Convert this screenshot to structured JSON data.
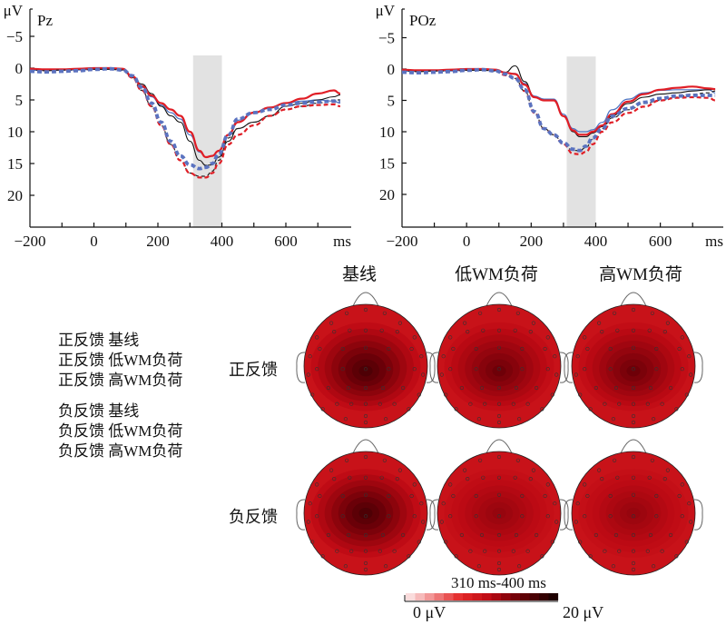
{
  "chart_data": [
    {
      "type": "line",
      "title": "Pz",
      "ylabel": "μV",
      "xlabel": "ms",
      "xlim": [
        -200,
        770
      ],
      "ylim": [
        -7,
        25
      ],
      "y_inverted": true,
      "yticks": [
        "−5",
        "0",
        "5",
        "10",
        "15",
        "20"
      ],
      "ytick_values": [
        -5,
        0,
        5,
        10,
        15,
        20
      ],
      "xticks": [
        "−200",
        "0",
        "200",
        "400",
        "600"
      ],
      "xtick_values": [
        -200,
        0,
        200,
        400,
        600
      ],
      "shaded_window": [
        310,
        400
      ],
      "x": [
        -200,
        -150,
        -100,
        -50,
        0,
        50,
        90,
        120,
        150,
        180,
        210,
        240,
        270,
        300,
        330,
        350,
        370,
        390,
        420,
        450,
        500,
        550,
        600,
        650,
        700,
        750,
        770
      ],
      "series": [
        {
          "name": "正反馈 基线",
          "values": [
            0.3,
            0.4,
            0.3,
            0.3,
            0.2,
            0.2,
            0.3,
            1.5,
            3.5,
            6,
            9,
            12,
            14.5,
            16.5,
            17,
            17,
            16.2,
            14.5,
            11,
            9.5,
            8.5,
            7.5,
            6.5,
            6,
            5.5,
            5,
            5
          ]
        },
        {
          "name": "正反馈 低WM负荷",
          "values": [
            0.3,
            0.5,
            0.3,
            0.4,
            0.2,
            0.1,
            0.2,
            1.5,
            3.5,
            6,
            9,
            12,
            14.5,
            16.5,
            17.2,
            17.2,
            16.5,
            15,
            12,
            10.5,
            9,
            7.5,
            6.5,
            6,
            5.8,
            5.7,
            6
          ]
        },
        {
          "name": "正反馈 高WM负荷",
          "values": [
            0.5,
            0.6,
            0.5,
            0.4,
            0.2,
            0.1,
            0.3,
            1.2,
            3,
            5.5,
            8.5,
            11.5,
            13.8,
            15.2,
            15.8,
            15.6,
            15,
            13.5,
            10.5,
            8,
            7,
            6.5,
            5.8,
            5.5,
            5.3,
            5.2,
            5.3
          ]
        },
        {
          "name": "负反馈 基线",
          "values": [
            0.2,
            0.3,
            0.2,
            0.2,
            0.1,
            0.1,
            0.2,
            1.5,
            2.5,
            4,
            6,
            7.5,
            8.5,
            11.5,
            14.5,
            15.3,
            15.2,
            14,
            11.5,
            9.5,
            8.5,
            7.5,
            6,
            5.5,
            5,
            4.5,
            4.2
          ]
        },
        {
          "name": "负反馈 低WM负荷",
          "values": [
            0.1,
            0.2,
            0.2,
            0.1,
            0,
            0,
            0.1,
            1.3,
            2.8,
            4.3,
            5.5,
            6.5,
            7.5,
            10,
            13,
            14,
            13.8,
            13,
            10.5,
            8.5,
            7,
            6.2,
            5.5,
            4.8,
            4,
            3.5,
            4
          ]
        },
        {
          "name": "负反馈 高WM负荷",
          "values": [
            0.3,
            0.4,
            0.3,
            0.3,
            0.2,
            0.1,
            0.3,
            1.4,
            3,
            4.5,
            5.8,
            7,
            8,
            10.5,
            13.2,
            14,
            13.8,
            13,
            10.5,
            8.2,
            7,
            6.3,
            5.5,
            5.2,
            5,
            5.2,
            5.5
          ]
        }
      ]
    },
    {
      "type": "line",
      "title": "POz",
      "ylabel": "μV",
      "xlabel": "ms",
      "xlim": [
        -200,
        770
      ],
      "ylim": [
        -7,
        25
      ],
      "y_inverted": true,
      "yticks": [
        "−5",
        "0",
        "5",
        "10",
        "15",
        "20"
      ],
      "ytick_values": [
        -5,
        0,
        5,
        10,
        15,
        20
      ],
      "xticks": [
        "−200",
        "0",
        "200",
        "400",
        "600"
      ],
      "xtick_values": [
        -200,
        0,
        200,
        400,
        600
      ],
      "shaded_window": [
        310,
        400
      ],
      "x": [
        -200,
        -150,
        -100,
        -50,
        0,
        50,
        90,
        120,
        150,
        180,
        210,
        240,
        270,
        300,
        330,
        350,
        370,
        390,
        420,
        450,
        500,
        550,
        600,
        650,
        700,
        750,
        770
      ],
      "series": [
        {
          "name": "正反馈 基线",
          "values": [
            0.3,
            0.4,
            0.3,
            0.3,
            0.2,
            0.2,
            0.3,
            0.8,
            1.5,
            3.5,
            7,
            9.5,
            10.5,
            12,
            13,
            13,
            12.5,
            11.2,
            9.5,
            7.8,
            6.5,
            5.5,
            5,
            4.5,
            4,
            3.8,
            3.5
          ]
        },
        {
          "name": "正反馈 低WM负荷",
          "values": [
            0.3,
            0.5,
            0.3,
            0.4,
            0.2,
            0.1,
            0.2,
            1,
            1.5,
            3.5,
            7,
            9.5,
            10.5,
            12,
            13.5,
            13.6,
            13.2,
            12,
            10,
            8.5,
            7,
            6,
            5,
            4.6,
            4.5,
            4.6,
            5
          ]
        },
        {
          "name": "正反馈 高WM负荷",
          "values": [
            0.5,
            0.6,
            0.5,
            0.4,
            0.2,
            0.1,
            0.3,
            0.8,
            1.5,
            3.3,
            6.8,
            9.5,
            10.5,
            11.8,
            12.8,
            13,
            12.3,
            11,
            9.5,
            7.5,
            6.3,
            5.3,
            4.7,
            4.3,
            4.2,
            4.2,
            4.2
          ]
        },
        {
          "name": "负反馈 基线",
          "values": [
            0.2,
            0.3,
            0.2,
            0.2,
            0.1,
            0.1,
            0.2,
            0.5,
            -0.5,
            2,
            4.5,
            5,
            5,
            7.5,
            10,
            10.8,
            10.8,
            10.2,
            9.2,
            7.5,
            5.5,
            4.5,
            4,
            3.8,
            3.5,
            3.3,
            3.2
          ]
        },
        {
          "name": "负反馈 低WM负荷",
          "values": [
            0.1,
            0.2,
            0.2,
            0.1,
            0,
            0,
            0.1,
            0.6,
            0.8,
            2.5,
            4.5,
            5,
            5,
            7.5,
            9.8,
            10.5,
            10.5,
            10,
            9,
            7.2,
            5.2,
            4,
            3.3,
            3,
            2.8,
            3.1,
            3.2
          ]
        },
        {
          "name": "负反馈 高WM负荷",
          "values": [
            0.3,
            0.4,
            0.3,
            0.3,
            0.2,
            0.1,
            0.3,
            0.6,
            0.7,
            2.3,
            4.3,
            4.8,
            4.8,
            7.2,
            9.5,
            10,
            10,
            9.7,
            8.5,
            6.5,
            4.8,
            3.8,
            3.4,
            3.3,
            3.3,
            3.3,
            3.8
          ]
        }
      ]
    },
    {
      "type": "heatmap",
      "title": "310 ms-400 ms",
      "columns": [
        "基线",
        "低WM负荷",
        "高WM负荷"
      ],
      "rows": [
        "正反馈",
        "负反馈"
      ],
      "colorbar": {
        "min_label": "0 μV",
        "max_label": "20 μV",
        "min": 0,
        "max": 20
      },
      "center_amplitude_uV": [
        [
          17,
          15,
          15
        ],
        [
          17,
          13,
          13
        ]
      ]
    }
  ],
  "legend": [
    {
      "label": "正反馈 基线",
      "color": "#222222",
      "style": "dashed-thin"
    },
    {
      "label": "正反馈 低WM负荷",
      "color": "#e01e26",
      "style": "dashed"
    },
    {
      "label": "正反馈 高WM负荷",
      "color": "#5b73c0",
      "style": "dashed-thick"
    },
    {
      "label": "负反馈 基线",
      "color": "#111111",
      "style": "solid-thin"
    },
    {
      "label": "负反馈 低WM负荷",
      "color": "#e01e26",
      "style": "solid"
    },
    {
      "label": "负反馈 高WM负荷",
      "color": "#4a72c2",
      "style": "solid-thick"
    }
  ],
  "colors": {
    "shade": "#e2e2e2",
    "axis": "#111111"
  }
}
